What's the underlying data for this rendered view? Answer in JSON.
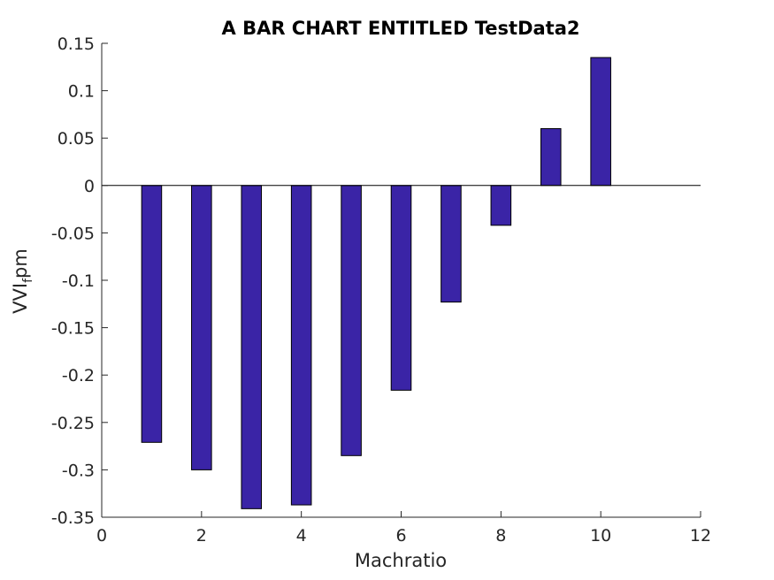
{
  "chart_data": {
    "type": "bar",
    "title": "A BAR CHART ENTITLED TestData2",
    "xlabel": "Machratio",
    "ylabel": {
      "main": "VVI",
      "subscript": "f",
      "suffix": "pm"
    },
    "x": [
      1,
      2,
      3,
      4,
      5,
      6,
      7,
      8,
      9,
      10
    ],
    "values": [
      -0.271,
      -0.3,
      -0.341,
      -0.337,
      -0.285,
      -0.216,
      -0.123,
      -0.042,
      0.06,
      0.135
    ],
    "xlim": [
      0,
      12
    ],
    "ylim": [
      -0.35,
      0.15
    ],
    "xticks": [
      0,
      2,
      4,
      6,
      8,
      10,
      12
    ],
    "yticks": [
      0.15,
      0.1,
      0.05,
      0,
      -0.05,
      -0.1,
      -0.15,
      -0.2,
      -0.25,
      -0.3,
      -0.35
    ],
    "xtick_labels": [
      "0",
      "2",
      "4",
      "6",
      "8",
      "10",
      "12"
    ],
    "ytick_labels": [
      "0.15",
      "0.1",
      "0.05",
      "0",
      "-0.05",
      "-0.1",
      "-0.15",
      "-0.2",
      "-0.25",
      "-0.3",
      "-0.35"
    ],
    "bar_color": "#3a24a6",
    "grid": false,
    "baseline": 0
  }
}
